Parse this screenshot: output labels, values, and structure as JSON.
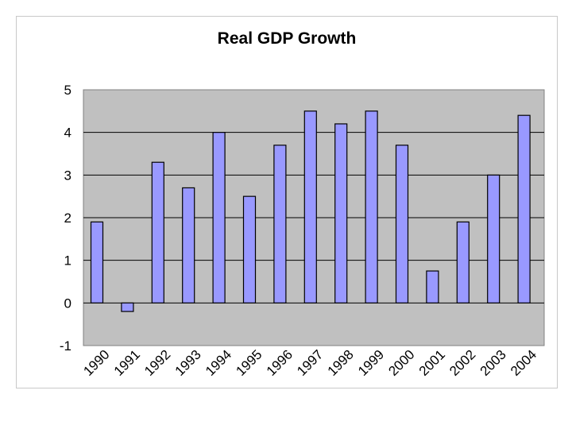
{
  "chart_data": {
    "type": "bar",
    "title": "Real GDP Growth",
    "categories": [
      "1990",
      "1991",
      "1992",
      "1993",
      "1994",
      "1995",
      "1996",
      "1997",
      "1998",
      "1999",
      "2000",
      "2001",
      "2002",
      "2003",
      "2004"
    ],
    "values": [
      1.9,
      -0.2,
      3.3,
      2.7,
      4.0,
      2.5,
      3.7,
      4.5,
      4.2,
      4.5,
      3.7,
      0.75,
      1.9,
      3.0,
      4.4
    ],
    "ylim": [
      -1,
      5
    ],
    "yticks": [
      -1,
      0,
      1,
      2,
      3,
      4,
      5
    ],
    "xlabel": "",
    "ylabel": "",
    "grid": true,
    "legend": "none",
    "colors": {
      "bar": "#9999ff",
      "plot_background": "#c0c0c0",
      "gridline": "#000000"
    }
  }
}
